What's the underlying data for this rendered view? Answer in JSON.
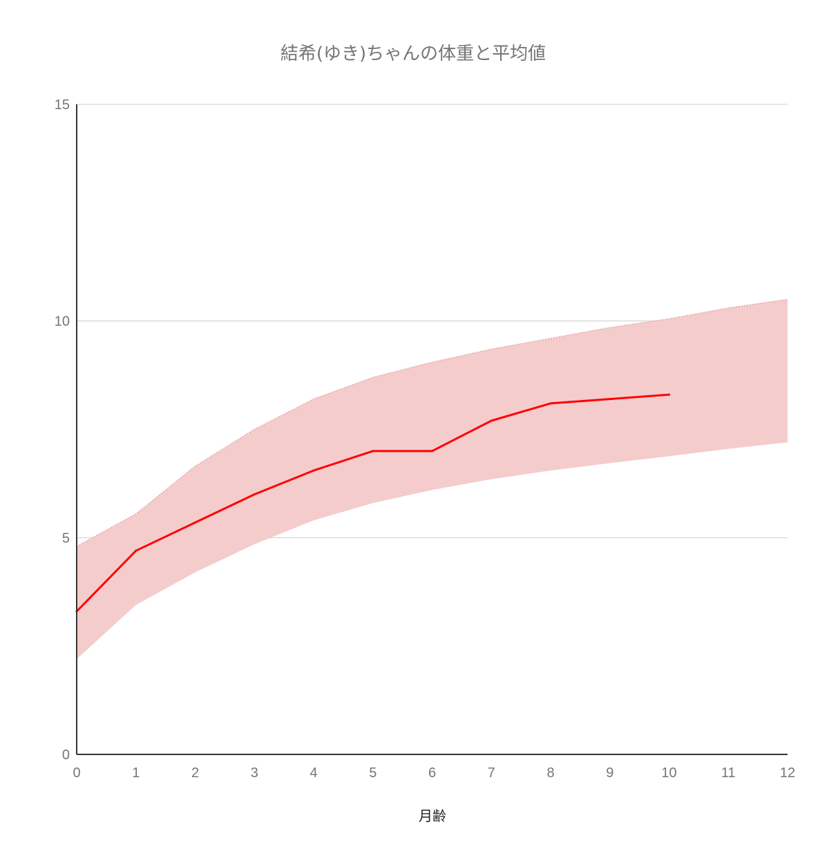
{
  "chart_data": {
    "type": "area",
    "title": "結希(ゆき)ちゃんの体重と平均値",
    "xlabel": "月齢",
    "ylabel": "",
    "x": [
      0,
      1,
      2,
      3,
      4,
      5,
      6,
      7,
      8,
      9,
      10,
      11,
      12
    ],
    "xlim": [
      0,
      12
    ],
    "ylim": [
      0,
      15
    ],
    "x_ticks": [
      "0",
      "1",
      "2",
      "3",
      "4",
      "5",
      "6",
      "7",
      "8",
      "9",
      "10",
      "11",
      "12"
    ],
    "y_ticks": [
      "0",
      "5",
      "10",
      "15"
    ],
    "y_tick_values": [
      0,
      5,
      10,
      15
    ],
    "grid": true,
    "legend": "none",
    "band": {
      "upper": [
        4.8,
        5.55,
        6.65,
        7.5,
        8.2,
        8.7,
        9.05,
        9.35,
        9.6,
        9.85,
        10.05,
        10.3,
        10.5
      ],
      "lower": [
        2.2,
        3.45,
        4.2,
        4.85,
        5.4,
        5.8,
        6.1,
        6.35,
        6.55,
        6.72,
        6.88,
        7.05,
        7.2
      ],
      "fill_color": "#f4cccc",
      "edge_color": "#e6a5a5"
    },
    "series": [
      {
        "x": [
          0,
          1,
          2,
          3,
          4,
          5,
          6,
          7,
          8,
          9,
          10
        ],
        "values": [
          3.3,
          4.7,
          5.35,
          6.0,
          6.55,
          7.0,
          7.0,
          7.7,
          8.1,
          8.2,
          8.3
        ],
        "color": "#ff0000"
      }
    ]
  }
}
